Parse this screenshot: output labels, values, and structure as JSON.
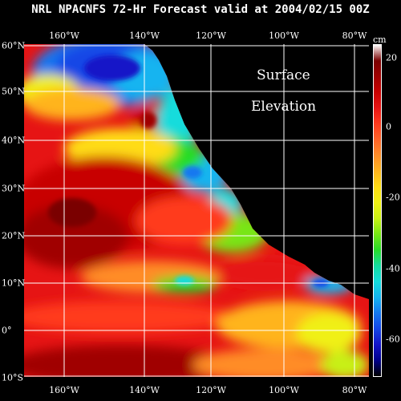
{
  "title": "NRL NPACNFS 72-Hr Forecast valid at 2004/02/15 00Z",
  "overlay": {
    "line1": "Surface",
    "line2": "Elevation"
  },
  "map": {
    "lon_labels": [
      "160°W",
      "140°W",
      "120°W",
      "100°W",
      "80°W"
    ],
    "lat_labels": [
      "60°N",
      "50°N",
      "40°N",
      "30°N",
      "20°N",
      "10°N",
      "0°",
      "10°S"
    ]
  },
  "colorbar": {
    "unit": "cm",
    "tick_labels": [
      "20",
      "0",
      "-20",
      "-40",
      "-60"
    ],
    "colors": [
      "#ffffff",
      "#7a0000",
      "#a00000",
      "#c80000",
      "#e61414",
      "#ff3a1e",
      "#ff6428",
      "#ff8c28",
      "#ffb41e",
      "#ffdc14",
      "#f0f014",
      "#c8f014",
      "#78e614",
      "#28dc28",
      "#14dca0",
      "#14dcdc",
      "#14b4f0",
      "#1478f0",
      "#1446e6",
      "#1414c8",
      "#00008c",
      "#000000"
    ]
  },
  "palette": {
    "land": "#000000",
    "grid": "#ffffff"
  }
}
